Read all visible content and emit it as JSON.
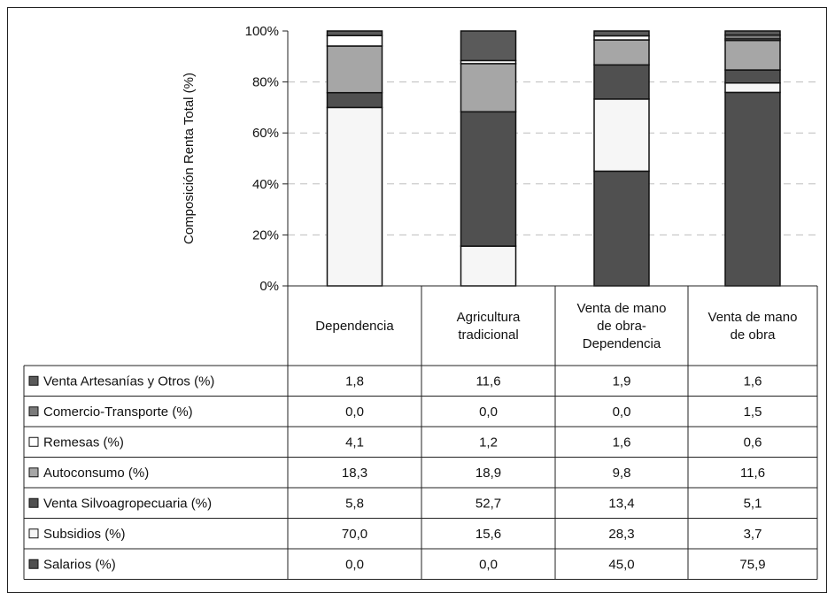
{
  "chart_data": {
    "type": "bar",
    "stacked": true,
    "ylabel": "Composición Renta Total (%)",
    "ylim": [
      0,
      100
    ],
    "yticks": [
      "0%",
      "20%",
      "40%",
      "60%",
      "80%",
      "100%"
    ],
    "grid": true,
    "categories": [
      [
        "Dependencia"
      ],
      [
        "Agricultura",
        "tradicional"
      ],
      [
        "Venta de mano",
        "de obra-",
        "Dependencia"
      ],
      [
        "Venta de mano",
        "de obra"
      ]
    ],
    "series": [
      {
        "name": "Salarios (%)",
        "color": "#505050",
        "values": [
          0.0,
          0.0,
          45.0,
          75.9
        ],
        "labels": [
          "0,0",
          "0,0",
          "45,0",
          "75,9"
        ]
      },
      {
        "name": "Subsidios (%)",
        "color": "#f6f6f6",
        "values": [
          70.0,
          15.6,
          28.3,
          3.7
        ],
        "labels": [
          "70,0",
          "15,6",
          "28,3",
          "3,7"
        ]
      },
      {
        "name": "Venta Silvoagropecuaria (%)",
        "color": "#505050",
        "values": [
          5.8,
          52.7,
          13.4,
          5.1
        ],
        "labels": [
          "5,8",
          "52,7",
          "13,4",
          "5,1"
        ]
      },
      {
        "name": "Autoconsumo (%)",
        "color": "#a6a6a6",
        "values": [
          18.3,
          18.9,
          9.8,
          11.6
        ],
        "labels": [
          "18,3",
          "18,9",
          "9,8",
          "11,6"
        ]
      },
      {
        "name": "Remesas (%)",
        "color": "#ffffff",
        "values": [
          4.1,
          1.2,
          1.6,
          0.6
        ],
        "labels": [
          "4,1",
          "1,2",
          "1,6",
          "0,6"
        ]
      },
      {
        "name": "Comercio-Transporte (%)",
        "color": "#7a7a7a",
        "values": [
          0.0,
          0.0,
          0.0,
          1.5
        ],
        "labels": [
          "0,0",
          "0,0",
          "0,0",
          "1,5"
        ]
      },
      {
        "name": "Venta Artesanías y Otros (%)",
        "color": "#5a5a5a",
        "values": [
          1.8,
          11.6,
          1.9,
          1.6
        ],
        "labels": [
          "1,8",
          "11,6",
          "1,9",
          "1,6"
        ]
      }
    ]
  }
}
